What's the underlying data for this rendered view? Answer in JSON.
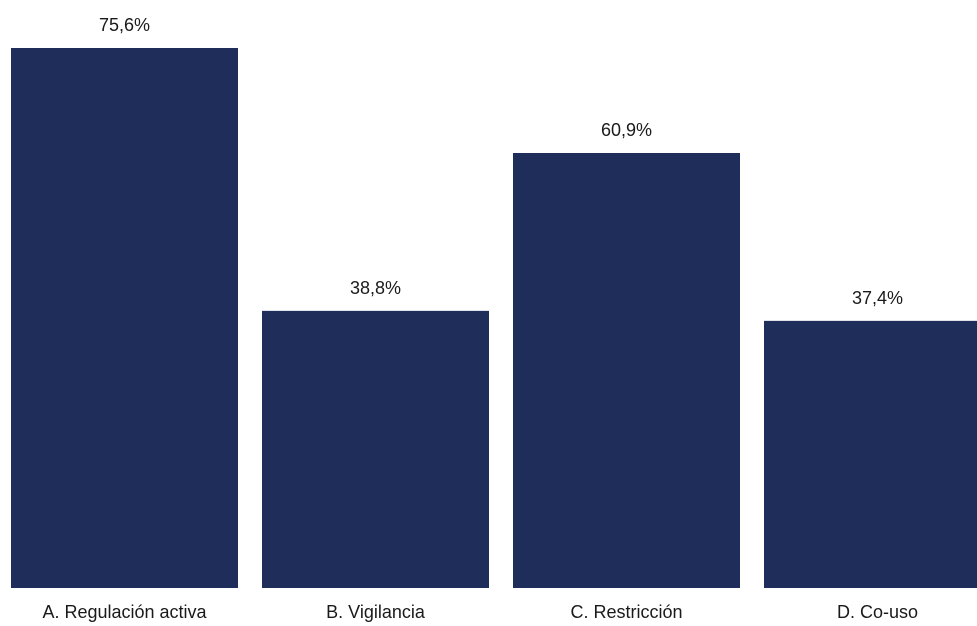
{
  "chart_data": {
    "type": "bar",
    "categories": [
      "A. Regulación activa",
      "B. Vigilancia",
      "C. Restricción",
      "D. Co-uso"
    ],
    "values": [
      75.6,
      38.8,
      60.9,
      37.4
    ],
    "value_labels": [
      "75,6%",
      "38,8%",
      "60,9%",
      "37,4%"
    ],
    "title": "",
    "xlabel": "",
    "ylabel": "",
    "ylim": [
      0,
      75.6
    ],
    "grid": false,
    "legend": "none",
    "bar_color": "#1e2d5a"
  }
}
